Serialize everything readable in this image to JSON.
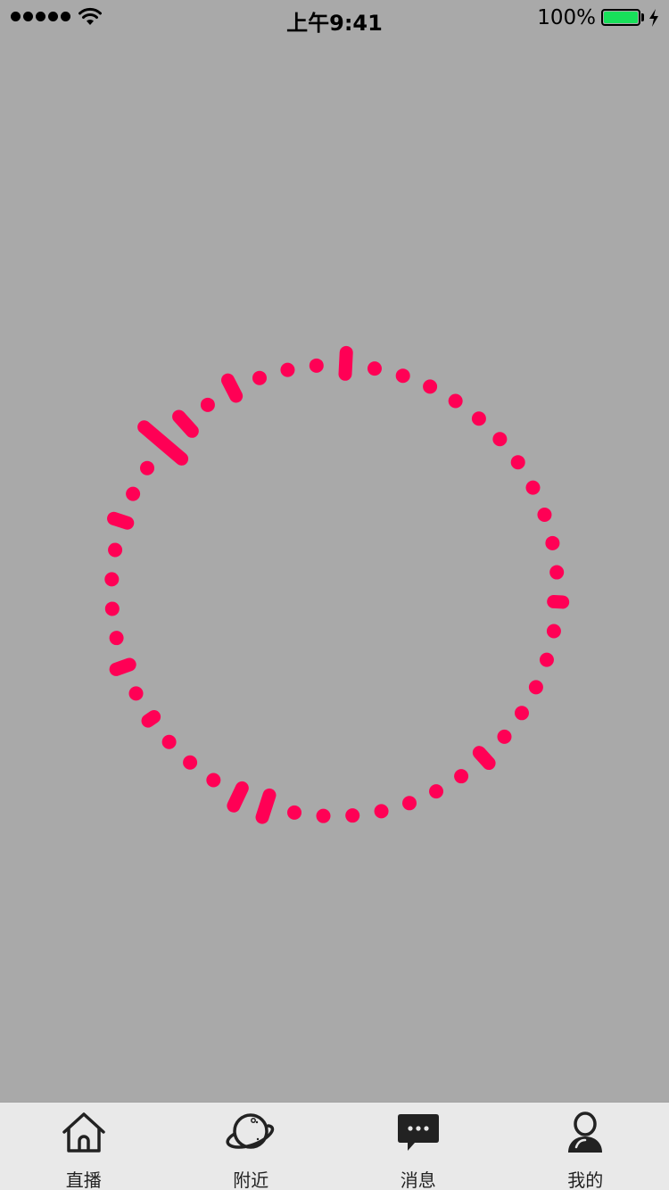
{
  "status_bar": {
    "time": "上午9:41",
    "battery_percent": "100%",
    "battery_level": 1.0,
    "battery_color": "#18e05a",
    "signal_bars": 5
  },
  "loading_spinner": {
    "color": "#ff0055",
    "background": "#a9a9a9",
    "dot_count": 48
  },
  "tab_bar": {
    "tabs": [
      {
        "label": "直播",
        "icon": "home-icon"
      },
      {
        "label": "附近",
        "icon": "planet-icon"
      },
      {
        "label": "消息",
        "icon": "chat-icon"
      },
      {
        "label": "我的",
        "icon": "user-icon"
      }
    ]
  }
}
